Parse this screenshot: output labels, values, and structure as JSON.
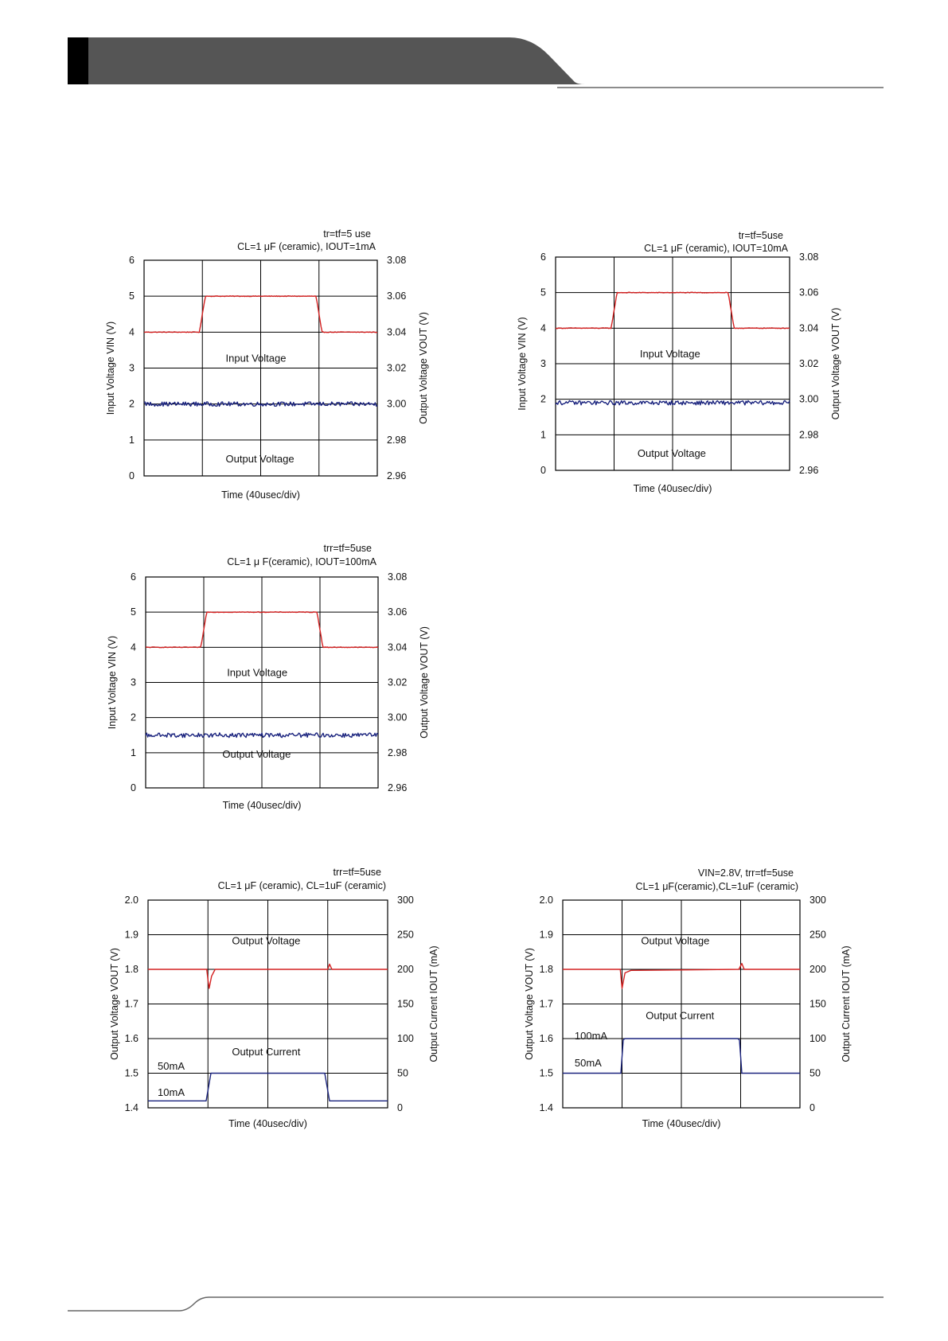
{
  "colors": {
    "header_bar": "#555555",
    "header_accent": "#000000",
    "rule": "#666666",
    "input_trace": "#d42020",
    "output_trace": "#1a237e",
    "grid": "#000000"
  },
  "chart_data": [
    {
      "type": "line",
      "condition_line1": "tr=tf=5 use",
      "condition_line2": "CL=1 μF (ceramic), IOUT=1mA",
      "xlabel": "Time (40usec/div)",
      "ylabel_left": "Input Voltage VIN (V)",
      "ylabel_right": "Output Voltage VOUT (V)",
      "y_left_ticks": [
        "0",
        "1",
        "2",
        "3",
        "4",
        "5",
        "6"
      ],
      "y_right_ticks": [
        "2.96",
        "2.98",
        "3.00",
        "3.02",
        "3.04",
        "3.06",
        "3.08"
      ],
      "x_divisions": 4,
      "ylim_left": [
        0,
        6
      ],
      "ylim_right": [
        2.96,
        3.08
      ],
      "series": [
        {
          "name": "Input Voltage",
          "axis": "left",
          "color": "#d42020",
          "points": [
            [
              0,
              4
            ],
            [
              0.95,
              4
            ],
            [
              1.05,
              5
            ],
            [
              2.95,
              5
            ],
            [
              3.05,
              4
            ],
            [
              4,
              4
            ]
          ],
          "noise": 0.01
        },
        {
          "name": "Output Voltage",
          "axis": "right",
          "color": "#1a237e",
          "points": [
            [
              0,
              3.0
            ],
            [
              4,
              3.0
            ]
          ],
          "noise": 0.0012
        }
      ]
    },
    {
      "type": "line",
      "condition_line1": "tr=tf=5use",
      "condition_line2": "CL=1 μF (ceramic), IOUT=10mA",
      "xlabel": "Time (40usec/div)",
      "ylabel_left": "Input Voltage VIN (V)",
      "ylabel_right": "Output Voltage VOUT (V)",
      "y_left_ticks": [
        "0",
        "1",
        "2",
        "3",
        "4",
        "5",
        "6"
      ],
      "y_right_ticks": [
        "2.96",
        "2.98",
        "3.00",
        "3.02",
        "3.04",
        "3.06",
        "3.08"
      ],
      "x_divisions": 4,
      "ylim_left": [
        0,
        6
      ],
      "ylim_right": [
        2.96,
        3.08
      ],
      "series": [
        {
          "name": "Input Voltage",
          "axis": "left",
          "color": "#d42020",
          "points": [
            [
              0,
              4
            ],
            [
              0.95,
              4
            ],
            [
              1.05,
              5
            ],
            [
              2.95,
              5
            ],
            [
              3.05,
              4
            ],
            [
              4,
              4
            ]
          ],
          "noise": 0.01
        },
        {
          "name": "Output Voltage",
          "axis": "right",
          "color": "#1a237e",
          "points": [
            [
              0,
              2.998
            ],
            [
              4,
              2.998
            ]
          ],
          "noise": 0.0012
        }
      ]
    },
    {
      "type": "line",
      "condition_line1": "trr=tf=5use",
      "condition_line2": "CL=1 μ F(ceramic), IOUT=100mA",
      "xlabel": "Time (40usec/div)",
      "ylabel_left": "Input Voltage VIN (V)",
      "ylabel_right": "Output Voltage VOUT (V)",
      "y_left_ticks": [
        "0",
        "1",
        "2",
        "3",
        "4",
        "5",
        "6"
      ],
      "y_right_ticks": [
        "2.96",
        "2.98",
        "3.00",
        "3.02",
        "3.04",
        "3.06",
        "3.08"
      ],
      "x_divisions": 4,
      "ylim_left": [
        0,
        6
      ],
      "ylim_right": [
        2.96,
        3.08
      ],
      "series": [
        {
          "name": "Input Voltage",
          "axis": "left",
          "color": "#d42020",
          "points": [
            [
              0,
              4
            ],
            [
              0.95,
              4
            ],
            [
              1.05,
              5
            ],
            [
              2.95,
              5
            ],
            [
              3.05,
              4
            ],
            [
              4,
              4
            ]
          ],
          "noise": 0.01
        },
        {
          "name": "Output Voltage",
          "axis": "right",
          "color": "#1a237e",
          "points": [
            [
              0,
              2.99
            ],
            [
              4,
              2.99
            ]
          ],
          "noise": 0.0013
        }
      ]
    },
    {
      "type": "line",
      "condition_line1": "trr=tf=5use",
      "condition_line2": "CL=1 μF (ceramic), CL=1uF (ceramic)",
      "xlabel": "Time (40usec/div)",
      "ylabel_left": "Output Voltage VOUT (V)",
      "ylabel_right": "Output Current IOUT (mA)",
      "y_left_ticks": [
        "1.4",
        "1.5",
        "1.6",
        "1.7",
        "1.8",
        "1.9",
        "2.0"
      ],
      "y_right_ticks": [
        "0",
        "50",
        "100",
        "150",
        "200",
        "250",
        "300"
      ],
      "x_divisions": 4,
      "ylim_left": [
        1.4,
        2.0
      ],
      "ylim_right": [
        0,
        300
      ],
      "annotations": [
        "50mA",
        "10mA"
      ],
      "series": [
        {
          "name": "Output Voltage",
          "axis": "left",
          "color": "#d42020",
          "points": [
            [
              0,
              1.8
            ],
            [
              0.98,
              1.8
            ],
            [
              1.0,
              1.77
            ],
            [
              1.02,
              1.745
            ],
            [
              1.06,
              1.78
            ],
            [
              1.12,
              1.8
            ],
            [
              3.0,
              1.8
            ],
            [
              3.03,
              1.815
            ],
            [
              3.07,
              1.8
            ],
            [
              4,
              1.8
            ]
          ],
          "noise": 0
        },
        {
          "name": "Output Current",
          "axis": "right",
          "color": "#1a237e",
          "points": [
            [
              0,
              10
            ],
            [
              0.97,
              10
            ],
            [
              1.05,
              50
            ],
            [
              2.95,
              50
            ],
            [
              3.03,
              10
            ],
            [
              4,
              10
            ]
          ],
          "noise": 0
        }
      ]
    },
    {
      "type": "line",
      "condition_line1": "VIN=2.8V,  trr=tf=5use",
      "condition_line2": "CL=1 μF(ceramic),CL=1uF (ceramic)",
      "xlabel": "Time (40usec/div)",
      "ylabel_left": "Output Voltage VOUT (V)",
      "ylabel_right": "Output Current IOUT (mA)",
      "y_left_ticks": [
        "1.4",
        "1.5",
        "1.6",
        "1.7",
        "1.8",
        "1.9",
        "2.0"
      ],
      "y_right_ticks": [
        "0",
        "50",
        "100",
        "150",
        "200",
        "250",
        "300"
      ],
      "x_divisions": 4,
      "ylim_left": [
        1.4,
        2.0
      ],
      "ylim_right": [
        0,
        300
      ],
      "annotations": [
        "100mA",
        "50mA"
      ],
      "series": [
        {
          "name": "Output Voltage",
          "axis": "left",
          "color": "#d42020",
          "points": [
            [
              0,
              1.8
            ],
            [
              0.97,
              1.8
            ],
            [
              1.0,
              1.745
            ],
            [
              1.05,
              1.79
            ],
            [
              1.15,
              1.797
            ],
            [
              2.97,
              1.8
            ],
            [
              3.02,
              1.817
            ],
            [
              3.06,
              1.8
            ],
            [
              4,
              1.8
            ]
          ],
          "noise": 0
        },
        {
          "name": "Output Current",
          "axis": "right",
          "color": "#1a237e",
          "points": [
            [
              0,
              50
            ],
            [
              0.98,
              50
            ],
            [
              1.02,
              98
            ],
            [
              1.05,
              100
            ],
            [
              2.95,
              100
            ],
            [
              2.98,
              98
            ],
            [
              3.02,
              50
            ],
            [
              4,
              50
            ]
          ],
          "noise": 0
        }
      ]
    }
  ]
}
